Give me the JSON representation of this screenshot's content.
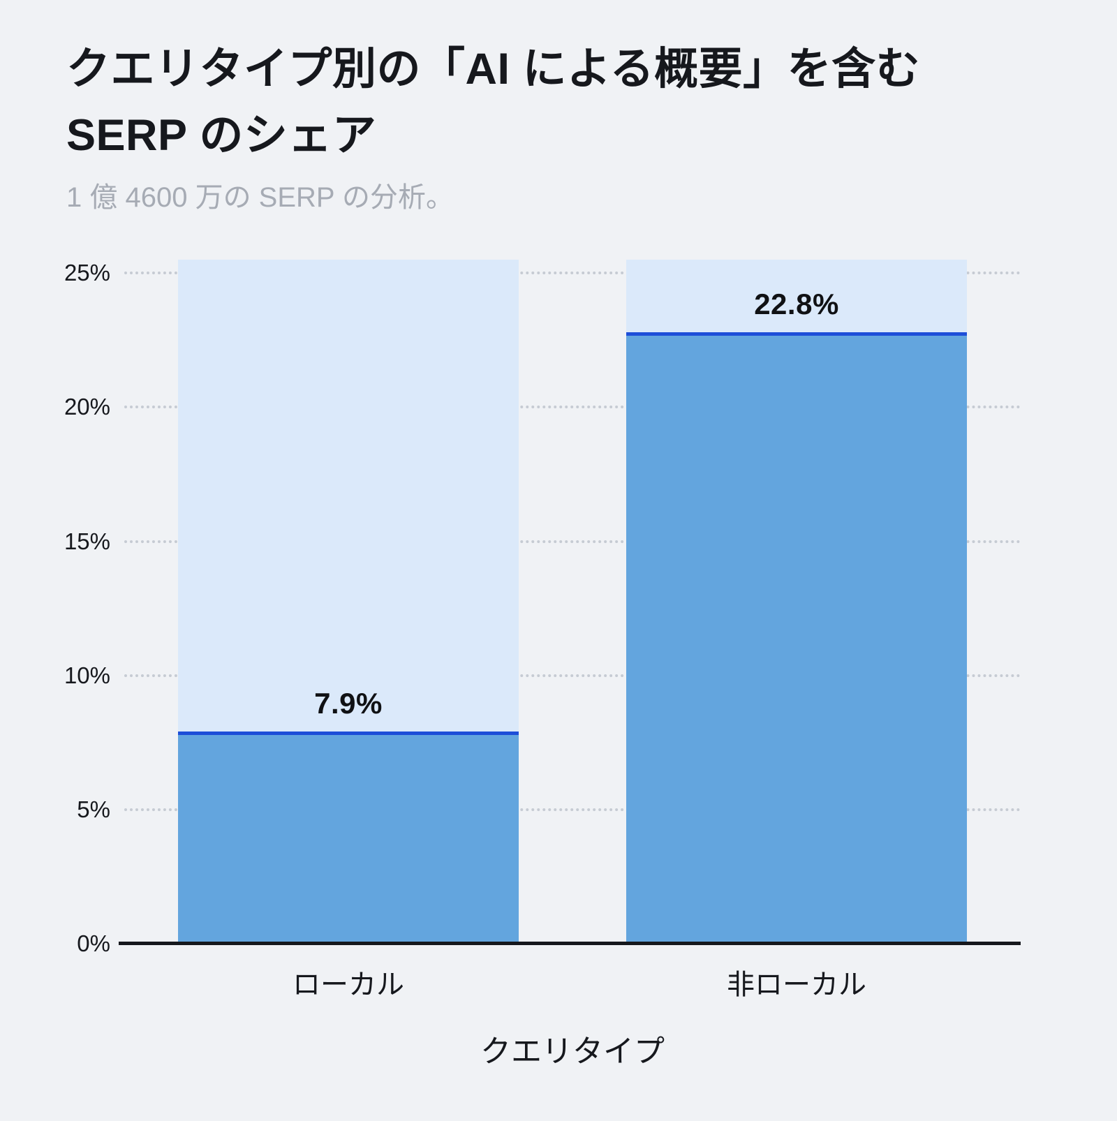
{
  "chart_data": {
    "type": "bar",
    "title": "クエリタイプ別の「AI による概要」を含む SERP のシェア",
    "subtitle": "1 億 4600 万の SERP の分析。",
    "xlabel": "クエリタイプ",
    "ylabel": "",
    "categories": [
      "ローカル",
      "非ローカル"
    ],
    "values": [
      7.9,
      22.8
    ],
    "value_labels": [
      "7.9%",
      "22.8%"
    ],
    "y_ticks": [
      0,
      5,
      10,
      15,
      20,
      25
    ],
    "y_tick_labels": [
      "0%",
      "5%",
      "10%",
      "15%",
      "20%",
      "25%"
    ],
    "ylim": [
      0,
      25.5
    ],
    "grid": "horizontal-dotted",
    "legend": "none",
    "colors": {
      "background": "#f0f2f5",
      "bar_track": "#dbe9fa",
      "bar_fill": "#63a5de",
      "bar_top_line": "#1d4ed8",
      "gridline": "#c6cbd3",
      "text": "#16181d",
      "subtitle_text": "#a6abb4"
    }
  }
}
